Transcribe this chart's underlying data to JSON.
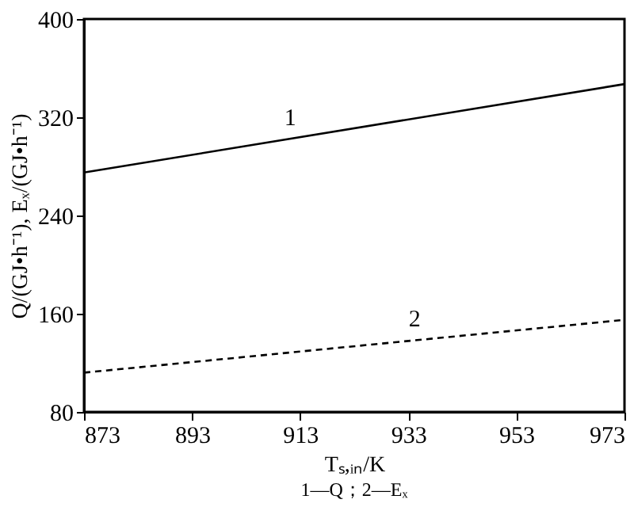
{
  "chart_data": {
    "type": "line",
    "xlabel": "Tₛ,ᵢₙ/K",
    "ylabel": "Q/(GJ•h⁻¹), Eₓ/(GJ•h⁻¹)",
    "x": [
      873,
      973
    ],
    "series": [
      {
        "color": "#000000",
        "line_style": "solid",
        "values": [
          275,
          347
        ]
      },
      {
        "color": "#000000",
        "line_style": "dashed",
        "values": [
          112,
          155
        ]
      }
    ],
    "xlim": [
      873,
      973
    ],
    "xticks": [
      873,
      893,
      913,
      933,
      953,
      973
    ],
    "ylim": [
      80,
      400
    ],
    "yticks": [
      80,
      160,
      240,
      320,
      400
    ],
    "grid": false,
    "marker": "none",
    "annotations": [
      {
        "text": "1",
        "x": 910,
        "y": 302
      },
      {
        "text": "2",
        "x": 933,
        "y": 138
      },
      "1—Q；2—Eₓ"
    ]
  }
}
